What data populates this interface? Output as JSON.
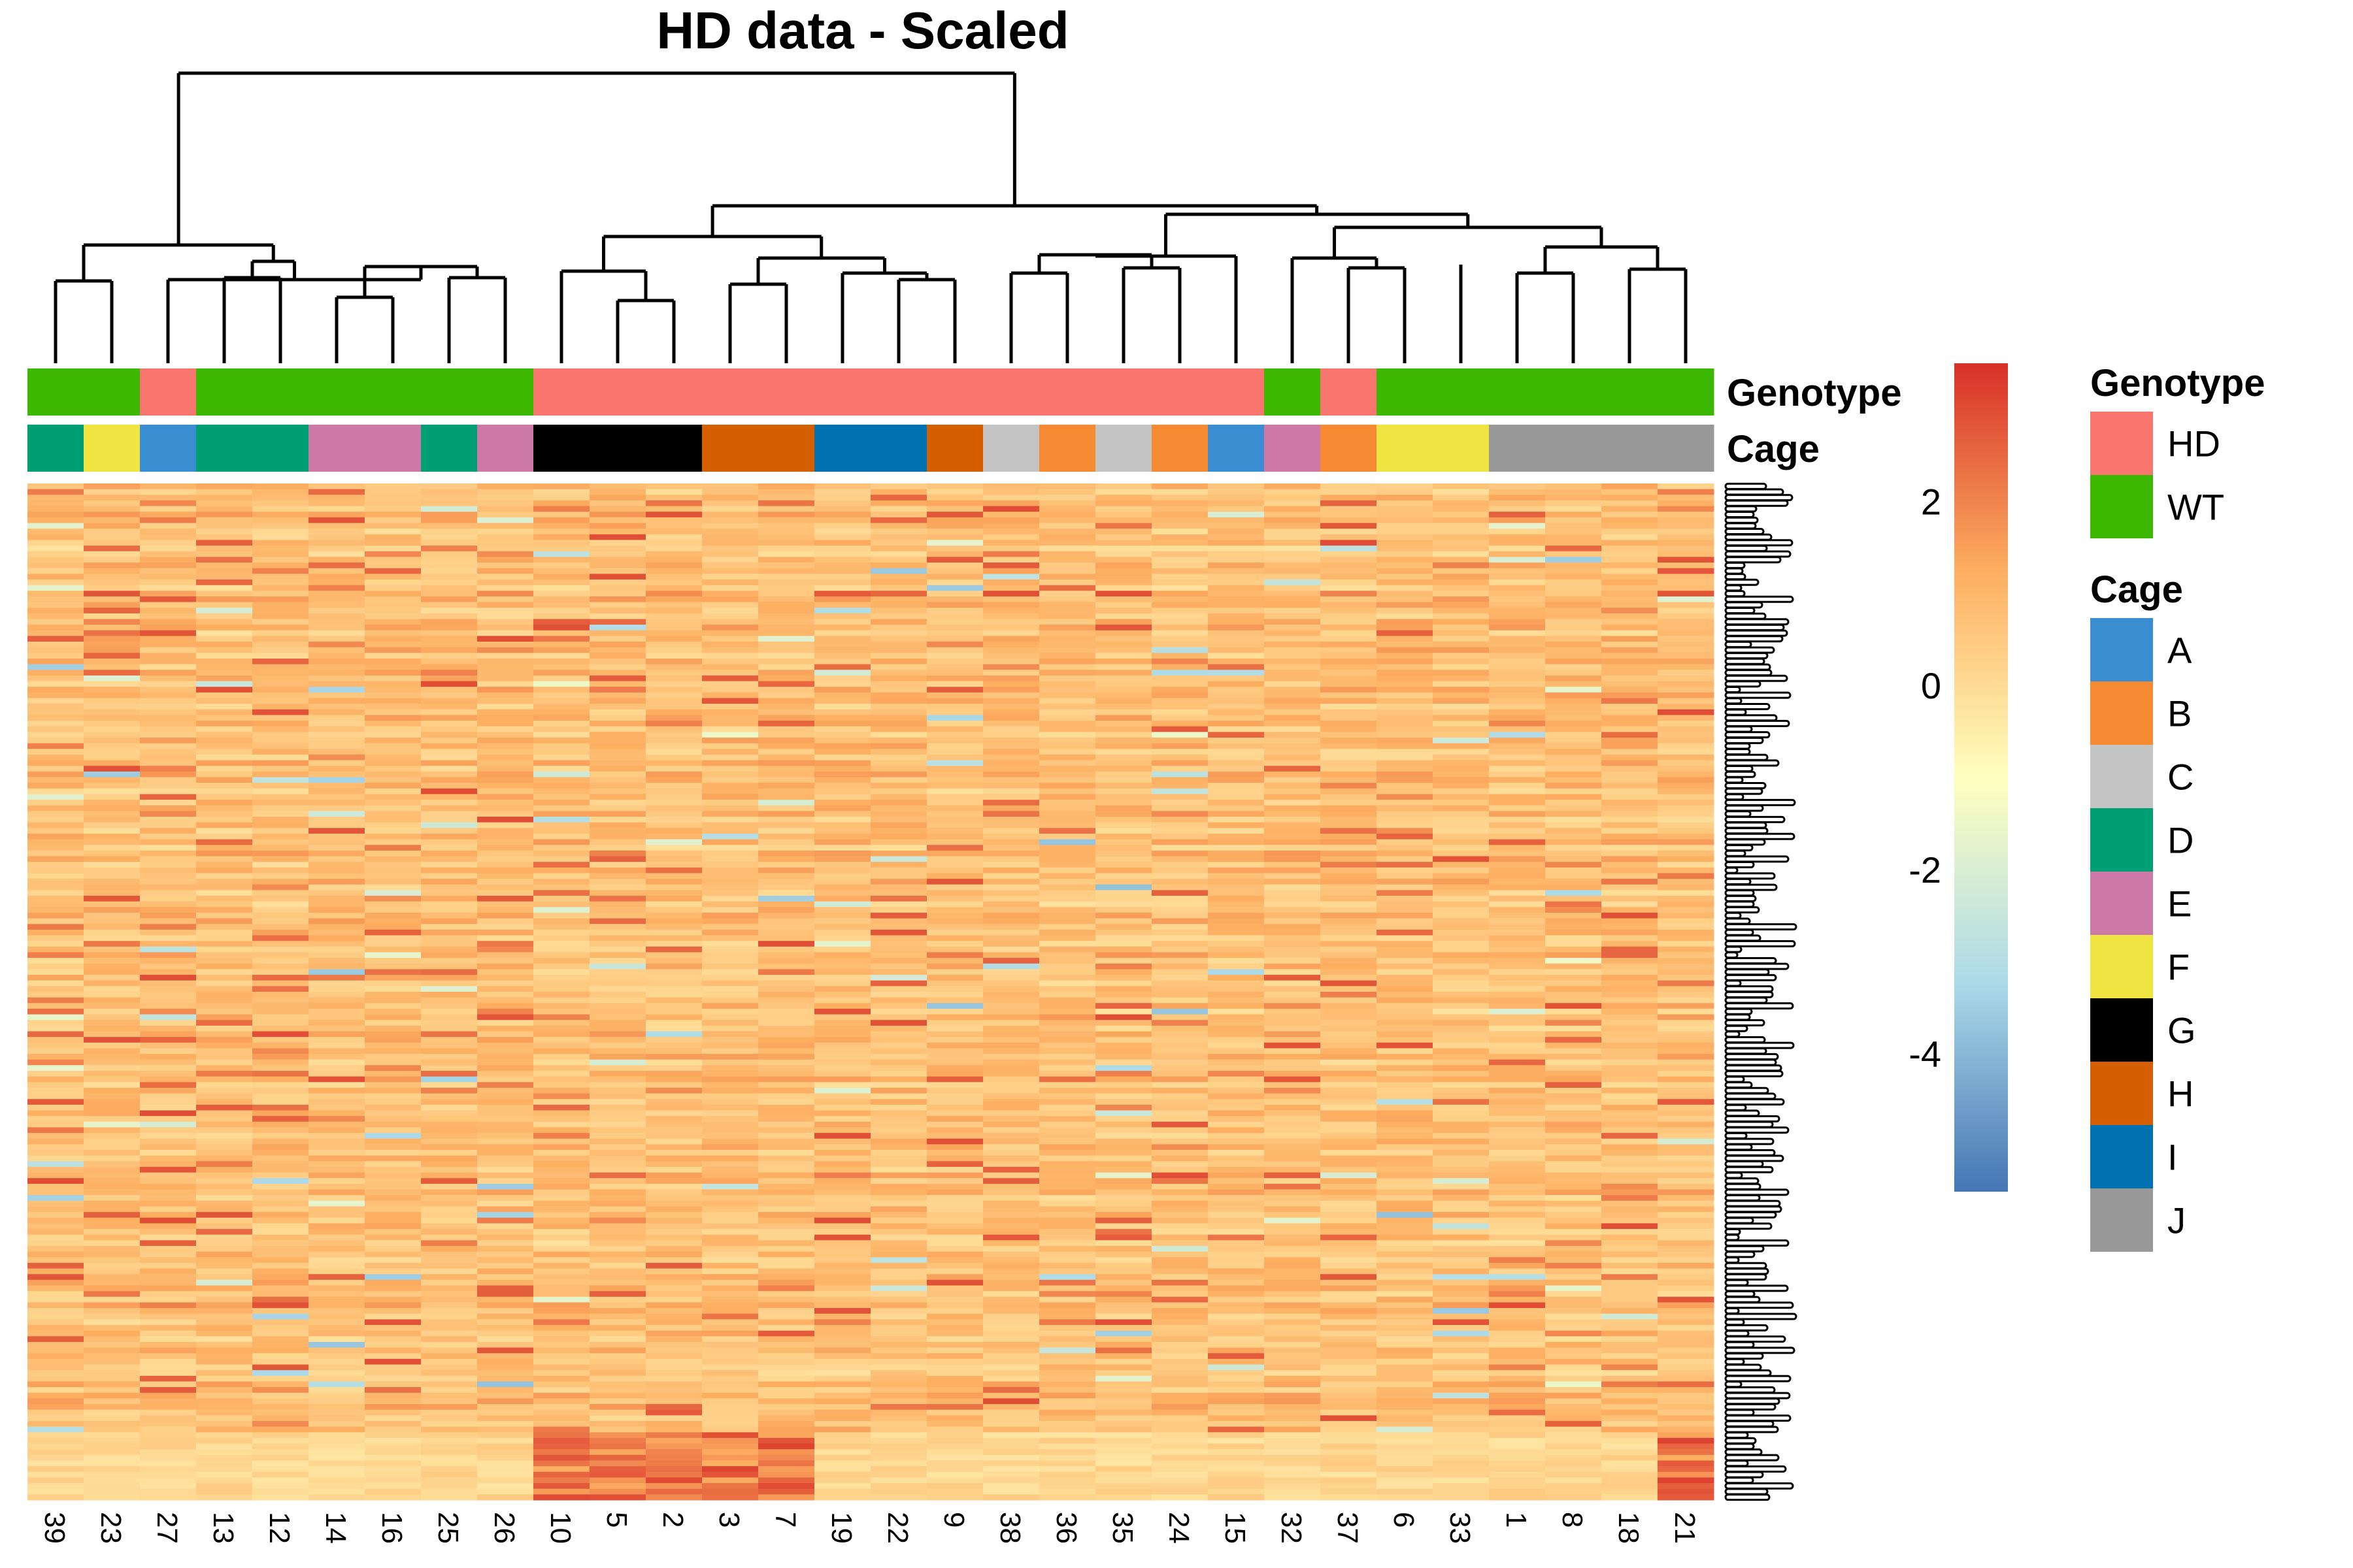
{
  "chart_data": {
    "type": "heatmap",
    "title": "HD data - Scaled",
    "columns": [
      "39",
      "23",
      "27",
      "13",
      "12",
      "14",
      "16",
      "25",
      "26",
      "10",
      "5",
      "2",
      "3",
      "7",
      "19",
      "22",
      "9",
      "38",
      "36",
      "35",
      "24",
      "15",
      "32",
      "37",
      "6",
      "33",
      "1",
      "8",
      "18",
      "21"
    ],
    "annotations": [
      {
        "name": "Genotype",
        "values": [
          "WT",
          "WT",
          "HD",
          "WT",
          "WT",
          "WT",
          "WT",
          "WT",
          "WT",
          "HD",
          "HD",
          "HD",
          "HD",
          "HD",
          "HD",
          "HD",
          "HD",
          "HD",
          "HD",
          "HD",
          "HD",
          "HD",
          "WT",
          "HD",
          "WT",
          "WT",
          "WT",
          "WT",
          "WT",
          "WT"
        ],
        "legend": [
          {
            "label": "HD",
            "color": "#F8766D"
          },
          {
            "label": "WT",
            "color": "#3DB800"
          }
        ]
      },
      {
        "name": "Cage",
        "values": [
          "D",
          "F",
          "A",
          "D",
          "D",
          "E",
          "E",
          "D",
          "E",
          "G",
          "G",
          "G",
          "H",
          "H",
          "I",
          "I",
          "H",
          "C",
          "B",
          "C",
          "B",
          "A",
          "E",
          "B",
          "F",
          "F",
          "J",
          "J",
          "J",
          "J"
        ],
        "legend": [
          {
            "label": "A",
            "color": "#3A8DD0"
          },
          {
            "label": "B",
            "color": "#F58A32"
          },
          {
            "label": "C",
            "color": "#C4C4C4"
          },
          {
            "label": "D",
            "color": "#009E73"
          },
          {
            "label": "E",
            "color": "#CC79A7"
          },
          {
            "label": "F",
            "color": "#F0E442"
          },
          {
            "label": "G",
            "color": "#000000"
          },
          {
            "label": "H",
            "color": "#D55E00"
          },
          {
            "label": "I",
            "color": "#0072B2"
          },
          {
            "label": "J",
            "color": "#999999"
          }
        ]
      }
    ],
    "color_scale": {
      "range": [
        -5.5,
        3.5
      ],
      "ticks": [
        2,
        0,
        -2,
        -4
      ],
      "colors": [
        "#4575B4",
        "#ABD9E9",
        "#FFFFBF",
        "#FDAE61",
        "#D73027"
      ]
    },
    "n_rows": 180,
    "dendrogram": "hierarchical clustering of columns"
  }
}
